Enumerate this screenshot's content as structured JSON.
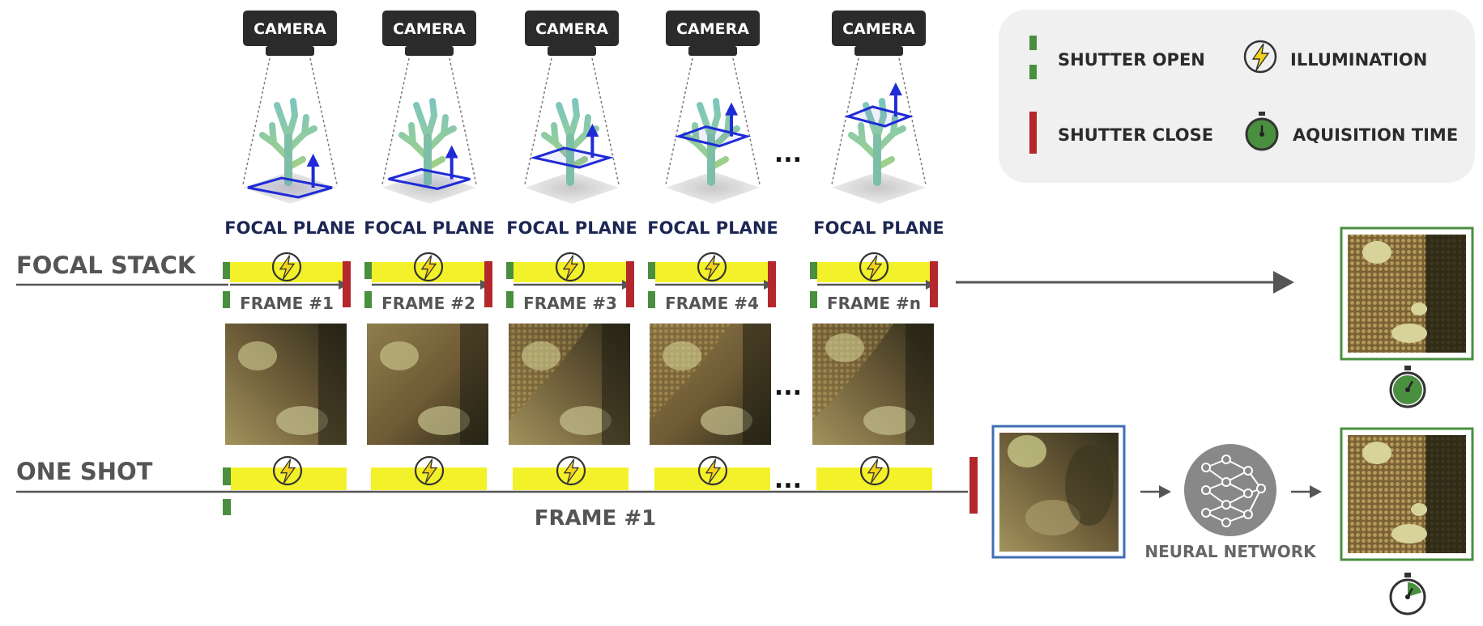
{
  "colors": {
    "shutter_open": "#4a8f3f",
    "shutter_close": "#b3272d",
    "illumination": "#f3f129",
    "focal_plane": "#1f2bd6",
    "arrow": "#555555",
    "legend_bg": "#f0f0f0",
    "result_border": "#4a8f3f",
    "input_border": "#3f6fb5",
    "nn_circle": "#888888"
  },
  "cameras": [
    {
      "label": "CAMERA",
      "plane_label": "FOCAL PLANE",
      "plane_level": 0.0
    },
    {
      "label": "CAMERA",
      "plane_label": "FOCAL PLANE",
      "plane_level": 0.12
    },
    {
      "label": "CAMERA",
      "plane_label": "FOCAL PLANE",
      "plane_level": 0.42
    },
    {
      "label": "CAMERA",
      "plane_label": "FOCAL PLANE",
      "plane_level": 0.72
    },
    {
      "label": "CAMERA",
      "plane_label": "FOCAL PLANE",
      "plane_level": 1.0
    }
  ],
  "ellipsis": "...",
  "focal_stack": {
    "title": "FOCAL STACK",
    "frames": [
      "FRAME #1",
      "FRAME #2",
      "FRAME #3",
      "FRAME #4",
      "FRAME #n"
    ]
  },
  "one_shot": {
    "title": "ONE SHOT",
    "frame_label": "FRAME #1"
  },
  "neural_network": {
    "label": "NEURAL NETWORK",
    "icon": "neural-network-icon"
  },
  "timers": {
    "focal_stack_fraction": 1.0,
    "one_shot_fraction": 0.2
  },
  "legend": {
    "shutter_open": "SHUTTER OPEN",
    "illumination": "ILLUMINATION",
    "shutter_close": "SHUTTER CLOSE",
    "acquisition_time": "AQUISITION TIME"
  }
}
